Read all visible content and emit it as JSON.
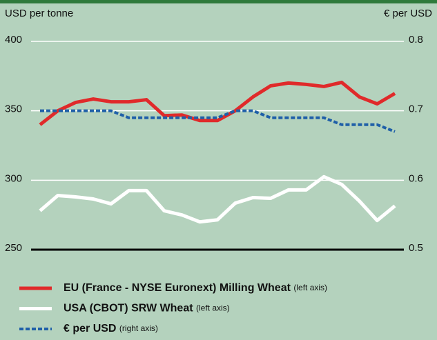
{
  "chart_data": {
    "type": "line",
    "y_label": "USD per tonne",
    "y2_label": "€ per USD",
    "categories": [
      null,
      null,
      null,
      null,
      null,
      null,
      null,
      null,
      null,
      null,
      null,
      null,
      null,
      null,
      null,
      null,
      null,
      null,
      null,
      null,
      null
    ],
    "ylim": [
      250,
      400
    ],
    "yticks": [
      250,
      300,
      350,
      400
    ],
    "y2lim": [
      0.5,
      0.8
    ],
    "y2ticks": [
      0.5,
      0.6,
      0.7,
      0.8
    ],
    "grid": true,
    "series": [
      {
        "name": "EU (France - NYSE Euronext) Milling Wheat",
        "axis_note": "(left axis)",
        "color": "#e02a2a",
        "values": [
          340,
          350,
          356,
          358.5,
          356.5,
          356.5,
          358,
          346.5,
          347,
          343,
          343,
          350,
          360,
          368,
          370,
          369,
          367.5,
          370.5,
          360,
          355,
          362.5
        ]
      },
      {
        "name": "USA (CBOT) SRW Wheat",
        "axis_note": "(left axis)",
        "color": "#ffffff",
        "values": [
          278,
          289,
          288,
          286.5,
          283,
          292.5,
          292.5,
          278,
          275,
          270,
          271.5,
          283.5,
          287.5,
          287,
          293,
          293,
          302.5,
          297,
          285,
          271,
          281.5
        ]
      },
      {
        "name": "€ per USD",
        "axis_note": "(right axis)",
        "color": "#1f5fa8",
        "axis": "y2",
        "dashed": true,
        "values": [
          0.7,
          0.7,
          0.7,
          0.7,
          0.7,
          0.69,
          0.69,
          0.69,
          0.69,
          0.69,
          0.69,
          0.7,
          0.7,
          0.69,
          0.69,
          0.69,
          0.69,
          0.68,
          0.68,
          0.68,
          0.67
        ]
      }
    ]
  }
}
